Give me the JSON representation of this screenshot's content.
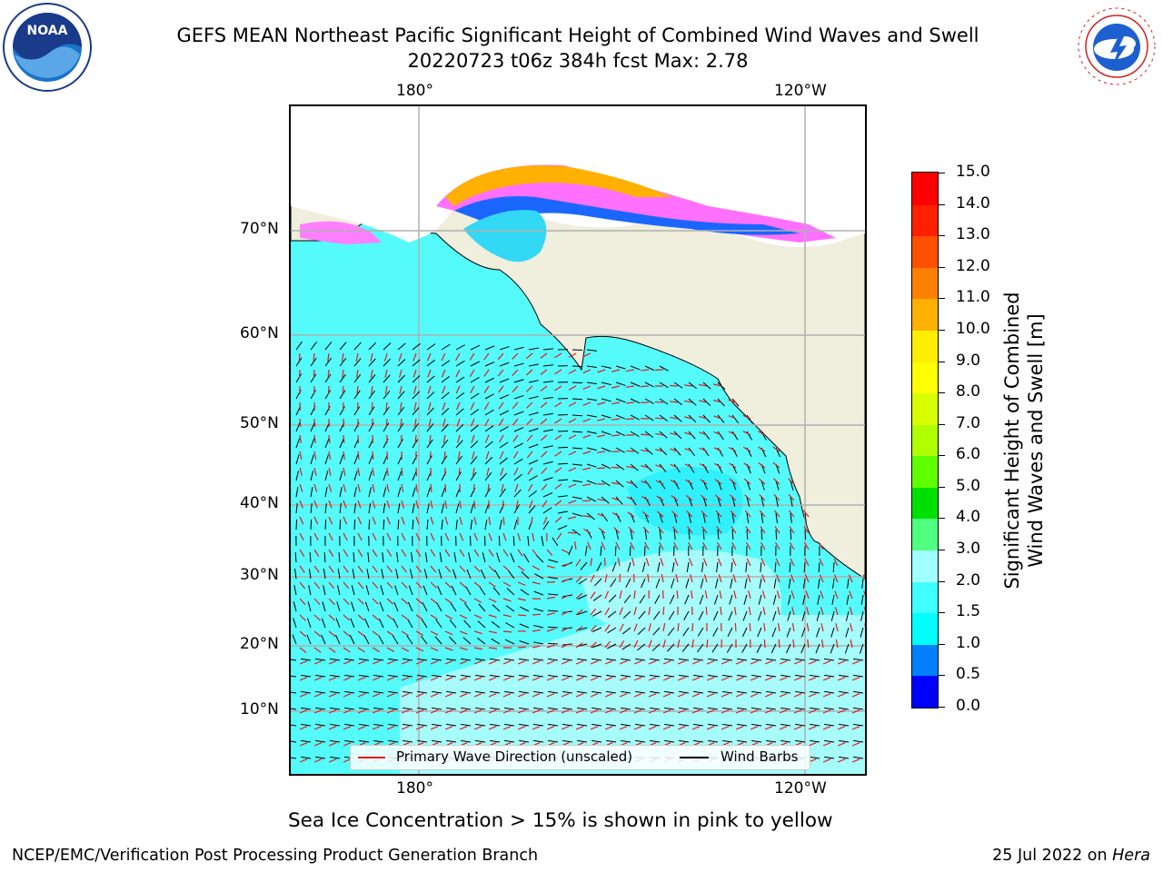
{
  "header": {
    "title_line1": "GEFS MEAN Northeast Pacific Significant Height of Combined Wind Waves and Swell",
    "title_line2": "20220723 t06z 384h fcst   Max: 2.78"
  },
  "logos": {
    "left_text": "NOAA",
    "left_ring": "NATIONAL OCEANIC AND ATMOSPHERIC ADMINISTRATION · U.S. DEPARTMENT OF COMMERCE",
    "right_ring": "NATIONAL WEATHER SERVICE"
  },
  "map": {
    "top_lon_labels": [
      "180°",
      "120°W"
    ],
    "bottom_lon_labels": [
      "180°",
      "120°W"
    ],
    "lat_labels": [
      "70°N",
      "60°N",
      "50°N",
      "40°N",
      "30°N",
      "20°N",
      "10°N"
    ],
    "colors": {
      "land": "#f0eedc",
      "ocean_base": "#55fbfb",
      "grid": "#b0b0b0",
      "wave_arrow": "#e31a1c",
      "wind_barb": "#000000"
    }
  },
  "legend": {
    "wave_label": "Primary Wave Direction (unscaled)",
    "wind_label": "Wind Barbs"
  },
  "colorbar": {
    "label_line1": "Significant Height of Combined",
    "label_line2": "Wind Waves and Swell [m]",
    "ticks": [
      "15.0",
      "14.0",
      "13.0",
      "12.0",
      "11.0",
      "10.0",
      "9.0",
      "8.0",
      "7.0",
      "6.0",
      "5.0",
      "4.0",
      "3.0",
      "2.0",
      "1.5",
      "1.0",
      "0.5",
      "0.0"
    ],
    "colors_bottom_to_top": [
      "#0000ff",
      "#0080ff",
      "#00ffff",
      "#40ffff",
      "#a0ffff",
      "#50ff80",
      "#00e000",
      "#60ff00",
      "#b0ff00",
      "#d8ff00",
      "#ffff00",
      "#ffee00",
      "#ffb000",
      "#ff8000",
      "#ff5000",
      "#ff2000",
      "#ff0000"
    ]
  },
  "caption": "Sea Ice Concentration > 15% is shown in pink to yellow",
  "footer": {
    "left": "NCEP/EMC/Verification Post Processing Product Generation Branch",
    "right_date": "25 Jul 2022 on ",
    "right_host": "Hera"
  }
}
